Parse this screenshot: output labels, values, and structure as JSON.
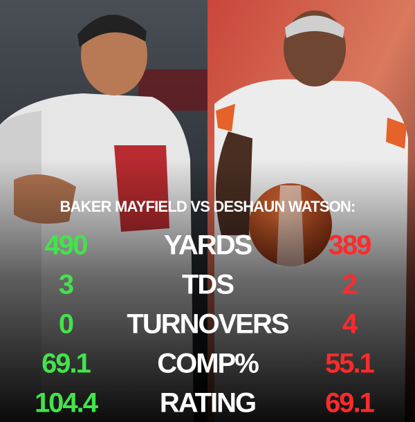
{
  "title": "BAKER MAYFIELD VS DESHAUN WATSON:",
  "table": {
    "rows": [
      [
        "490",
        "YARDS",
        "389"
      ],
      [
        "3",
        "TDS",
        "2"
      ],
      [
        "0",
        "TURNOVERS",
        "4"
      ],
      [
        "69.1",
        "COMP%",
        "55.1"
      ],
      [
        "104.4",
        "RATING",
        "69.1"
      ]
    ]
  }
}
